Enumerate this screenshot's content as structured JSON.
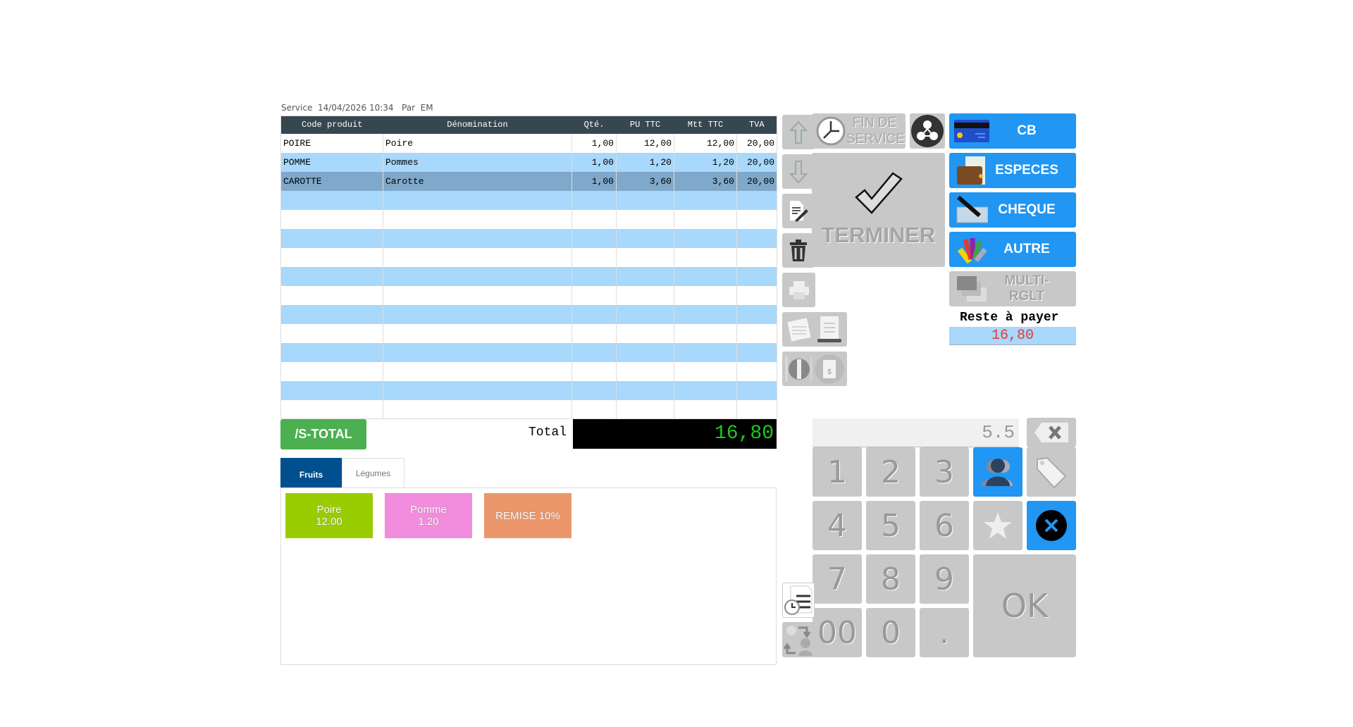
{
  "service": {
    "label": "Service",
    "datetime": "14/04/2026 10:34",
    "by_label": "Par",
    "user": "EM"
  },
  "table": {
    "columns": [
      "Code produit",
      "Dénomination",
      "Qté.",
      "PU TTC",
      "Mtt TTC",
      "TVA"
    ],
    "rows": [
      {
        "code": "POIRE",
        "name": "Poire",
        "qty": "1,00",
        "pu": "12,00",
        "mtt": "12,00",
        "tva": "20,00"
      },
      {
        "code": "POMME",
        "name": "Pommes",
        "qty": "1,00",
        "pu": "1,20",
        "mtt": "1,20",
        "tva": "20,00"
      },
      {
        "code": "CAROTTE",
        "name": "Carotte",
        "qty": "1,00",
        "pu": "3,60",
        "mtt": "3,60",
        "tva": "20,00",
        "selected": true
      }
    ]
  },
  "actions": {
    "fin_service": "FIN DE SERVICE",
    "terminer": "TERMINER",
    "subtotal": "/S-TOTAL"
  },
  "payments": [
    {
      "label": "CB",
      "icon": "credit-card-icon"
    },
    {
      "label": "ESPECES",
      "icon": "wallet-icon"
    },
    {
      "label": "CHEQUE",
      "icon": "cheque-icon"
    },
    {
      "label": "AUTRE",
      "icon": "color-swatch-icon"
    },
    {
      "label": "MULTI-RGLT",
      "icon": "multi-card-icon",
      "disabled": true
    }
  ],
  "remaining": {
    "label": "Reste à payer",
    "value": "16,80"
  },
  "total": {
    "label": "Total",
    "value": "16,80"
  },
  "tabs": [
    {
      "label": "Fruits",
      "active": true
    },
    {
      "label": "Légumes"
    }
  ],
  "products": [
    {
      "line1": "Poire",
      "line2": "12.00",
      "color": "#9acd00"
    },
    {
      "line1": "Pomme",
      "line2": "1.20",
      "color": "#f28cdc"
    },
    {
      "line1": "REMISE 10%",
      "line2": "",
      "color": "#ec976b"
    }
  ],
  "keypad": {
    "display": "5.5",
    "keys": [
      "1",
      "2",
      "3",
      "4",
      "5",
      "6",
      "7",
      "8",
      "9",
      "00",
      "0",
      "."
    ],
    "ok": "OK"
  },
  "colors": {
    "header": "#37474f",
    "row_alt": "#a8d8fb",
    "row_selected": "#80a8ca",
    "accent_blue": "#2196f3",
    "green": "#4caf50",
    "total_text": "#1ec81e",
    "remaining_text": "#e53935"
  }
}
